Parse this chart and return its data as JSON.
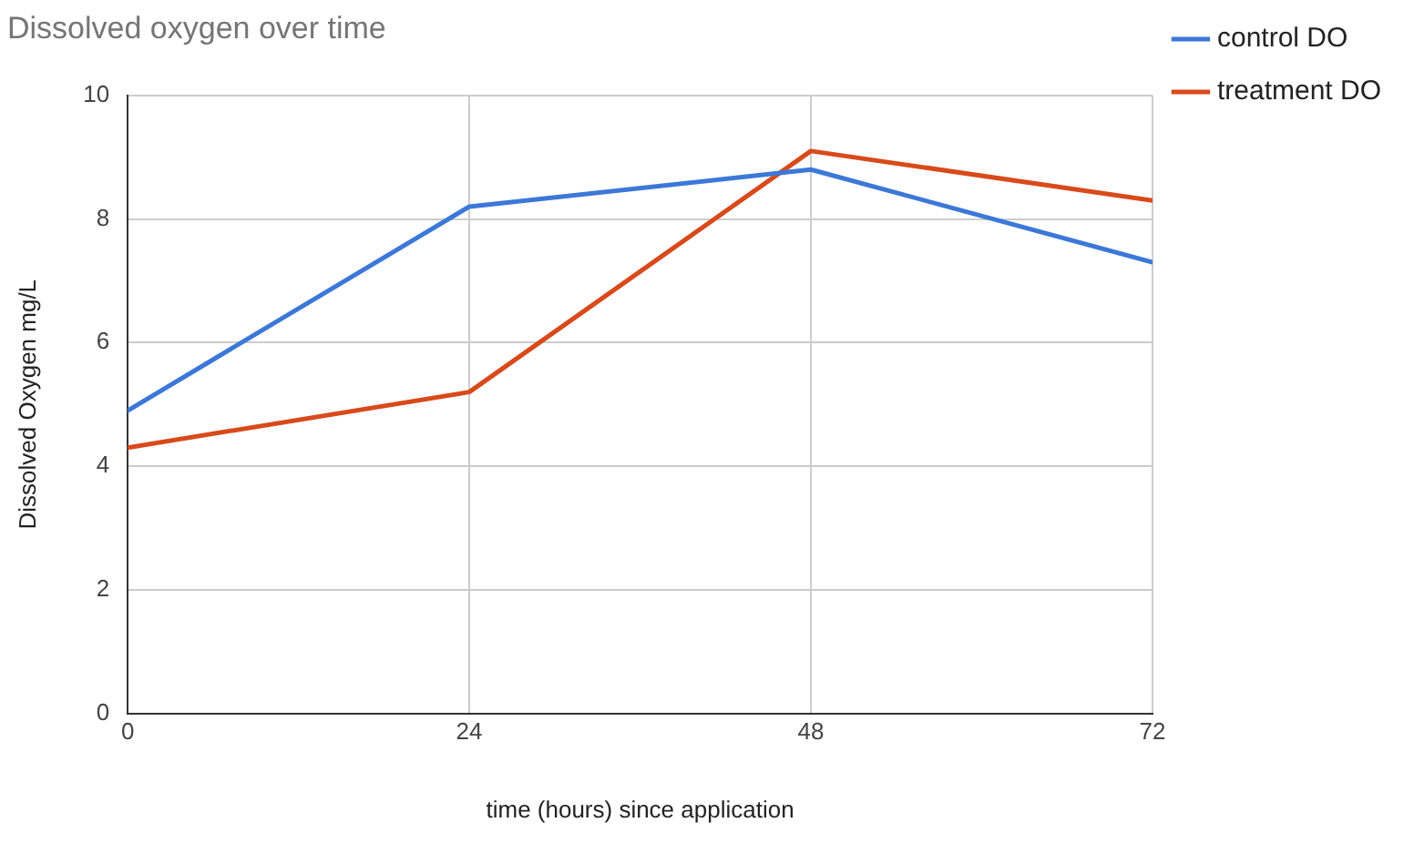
{
  "chart_data": {
    "type": "line",
    "title": "Dissolved oxygen over time",
    "xlabel": "time (hours) since application",
    "ylabel": "Dissolved Oxygen mg/L",
    "x": [
      0,
      24,
      48,
      72
    ],
    "xlim": [
      0,
      72
    ],
    "xticks": [
      0,
      24,
      48,
      72
    ],
    "ylim": [
      0,
      10
    ],
    "yticks": [
      0,
      2,
      4,
      6,
      8,
      10
    ],
    "grid": true,
    "legend": "top right",
    "marker": "none",
    "line_style": "solid",
    "series": [
      {
        "name": "control DO",
        "color": "#3c78d8",
        "values": [
          4.9,
          8.2,
          8.8,
          7.3
        ]
      },
      {
        "name": "treatment DO",
        "color": "#d84a1b",
        "values": [
          4.3,
          5.2,
          9.1,
          8.3
        ]
      }
    ]
  }
}
